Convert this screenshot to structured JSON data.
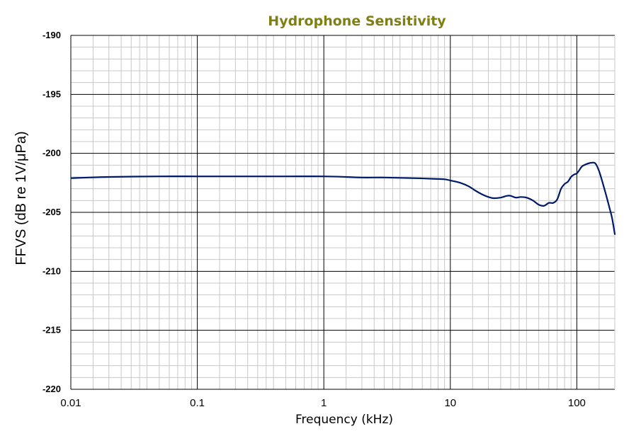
{
  "chart_data": {
    "type": "line",
    "title": "Hydrophone Sensitivity",
    "xlabel": "Frequency (kHz)",
    "ylabel": "FFVS (dB re 1V/μPa)",
    "x_scale": "log",
    "xlim": [
      0.01,
      200
    ],
    "ylim": [
      -220,
      -190
    ],
    "x_ticks": [
      0.01,
      0.1,
      1,
      10,
      100
    ],
    "x_tick_labels": [
      "0.01",
      "0.1",
      "1",
      "10",
      "100"
    ],
    "y_ticks": [
      -220,
      -215,
      -210,
      -205,
      -200,
      -195,
      -190
    ],
    "y_tick_labels": [
      "-220",
      "-215",
      "-210",
      "-205",
      "-200",
      "-195",
      "-190"
    ],
    "grid": true,
    "legend": "none",
    "series": [
      {
        "x": [
          0.01,
          0.02,
          0.05,
          0.1,
          0.2,
          0.5,
          1,
          1.5,
          2,
          3,
          5,
          7,
          9,
          10,
          12,
          14,
          16,
          18,
          20,
          22,
          25,
          28,
          30,
          33,
          36,
          40,
          45,
          50,
          55,
          60,
          65,
          70,
          75,
          80,
          85,
          90,
          95,
          100,
          105,
          110,
          120,
          130,
          140,
          150,
          160,
          170,
          180,
          190,
          200
        ],
        "y": [
          -202.1,
          -202.0,
          -201.95,
          -201.95,
          -201.95,
          -201.95,
          -201.95,
          -202.0,
          -202.05,
          -202.05,
          -202.1,
          -202.15,
          -202.2,
          -202.3,
          -202.5,
          -202.8,
          -203.2,
          -203.5,
          -203.7,
          -203.8,
          -203.75,
          -203.6,
          -203.6,
          -203.75,
          -203.7,
          -203.75,
          -204.0,
          -204.35,
          -204.45,
          -204.2,
          -204.2,
          -203.9,
          -203.0,
          -202.6,
          -202.4,
          -202.0,
          -201.8,
          -201.7,
          -201.4,
          -201.1,
          -200.9,
          -200.8,
          -200.85,
          -201.5,
          -202.5,
          -203.5,
          -204.5,
          -205.5,
          -206.9
        ],
        "color": "#001a6b"
      }
    ],
    "colors": {
      "title": "#7f7f14",
      "line": "#001a6b",
      "major_grid": "#000000",
      "minor_grid": "#c8c8c8"
    }
  }
}
